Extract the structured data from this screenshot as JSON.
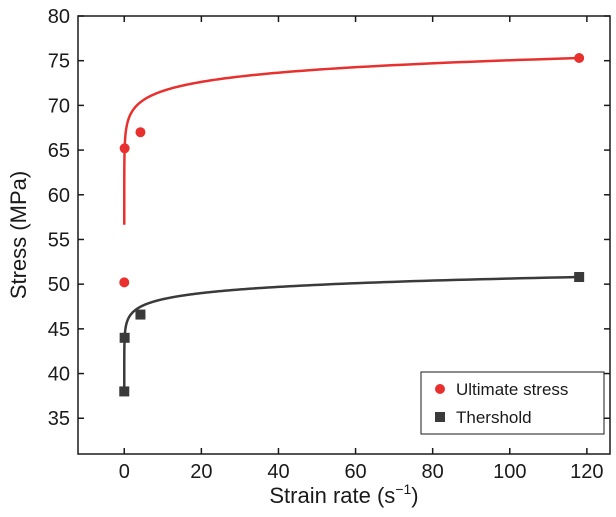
{
  "chart_data": {
    "type": "scatter",
    "xlabel_main": "Strain rate (s",
    "xlabel_sup": "−1",
    "xlabel_end": ")",
    "ylabel": "Stress (MPa)",
    "xlim": [
      -12,
      126
    ],
    "ylim": [
      31,
      80
    ],
    "xticks": [
      0,
      20,
      40,
      60,
      80,
      100,
      120
    ],
    "yticks": [
      35,
      40,
      45,
      50,
      55,
      60,
      65,
      70,
      75,
      80
    ],
    "grid": false,
    "legend_position": "bottom-right",
    "series": [
      {
        "name": "Ultimate stress",
        "marker": "circle",
        "color": "#e8312f",
        "x": [
          0.001,
          0.1,
          4.2,
          118
        ],
        "y": [
          50.2,
          65.2,
          67.0,
          75.3
        ],
        "fit": {
          "x0": 0.0001,
          "x1": 118
        }
      },
      {
        "name": "Thershold",
        "marker": "square",
        "color": "#3a3a3a",
        "x": [
          0.001,
          0.1,
          4.2,
          118
        ],
        "y": [
          38.0,
          44.0,
          46.6,
          50.8
        ],
        "fit": {
          "x0": 0.0001,
          "x1": 118
        }
      }
    ]
  }
}
